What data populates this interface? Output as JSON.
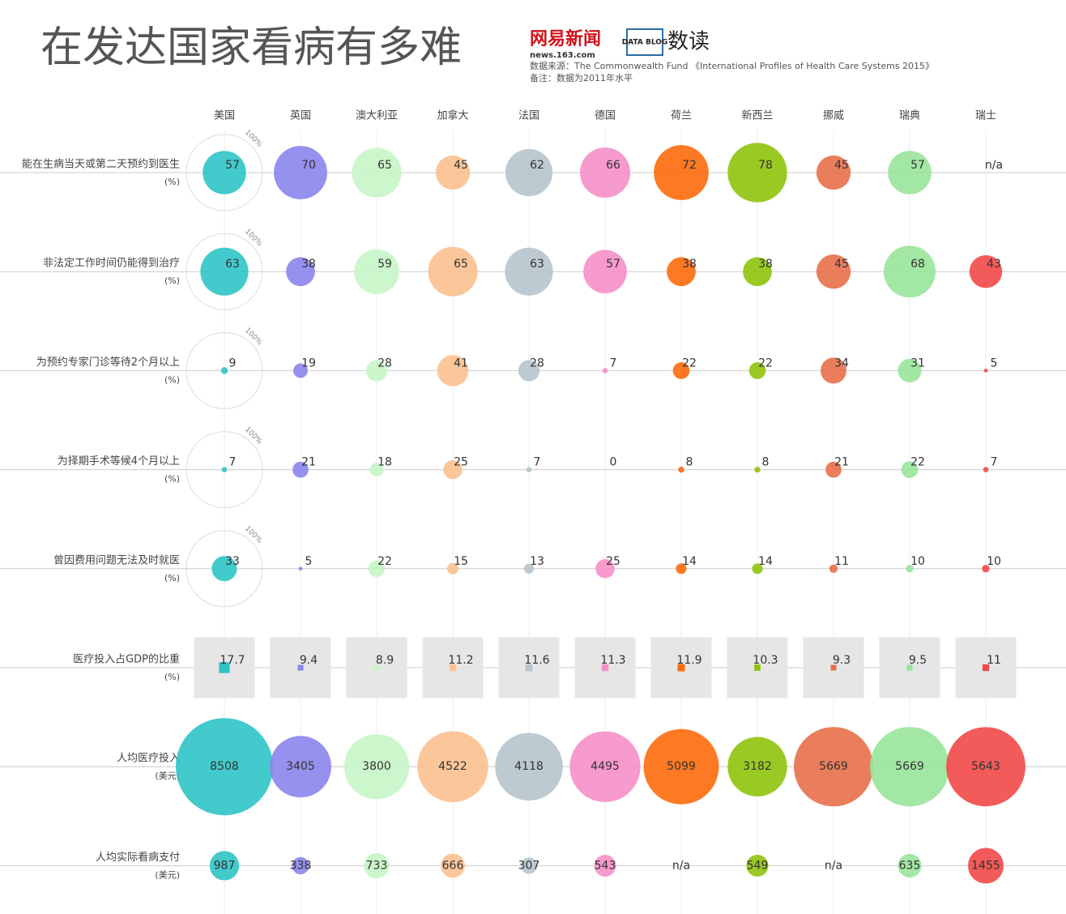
{
  "header": {
    "title": "在发达国家看病有多难",
    "logo_main": "网易新闻",
    "logo_sub": "news.163.com",
    "blog_mark": "DATA BLOG",
    "blog_name": "数读",
    "source": "数据来源：The Commonwealth Fund 《International Profiles of Health Care Systems 2015》",
    "note": "备注：数据为2011年水平"
  },
  "chart_data": {
    "type": "bubble_matrix",
    "categories": [
      "美国",
      "英国",
      "澳大利亚",
      "加拿大",
      "法国",
      "德国",
      "荷兰",
      "新西兰",
      "挪威",
      "瑞典",
      "瑞士"
    ],
    "colors": [
      "#2ec4c6",
      "#8b84ec",
      "#c6f5c6",
      "#fcc090",
      "#b6c4cc",
      "#f68fc8",
      "#fd6a0b",
      "#90c30c",
      "#e8704a",
      "#98e49a",
      "#f24848"
    ],
    "reference": {
      "value": 100,
      "label": "100%"
    },
    "series": [
      {
        "name": "能在生病当天或第二天预约到医生",
        "unit": "(%)",
        "values": [
          57,
          70,
          65,
          45,
          62,
          66,
          72,
          78,
          45,
          57,
          null
        ],
        "value_labels": [
          "57",
          "70",
          "65",
          "45",
          "62",
          "66",
          "72",
          "78",
          "45",
          "57",
          "n/a"
        ]
      },
      {
        "name": "非法定工作时间仍能得到治疗",
        "unit": "(%)",
        "values": [
          63,
          38,
          59,
          65,
          63,
          57,
          38,
          38,
          45,
          68,
          43
        ]
      },
      {
        "name": "为预约专家门诊等待2个月以上",
        "unit": "(%)",
        "values": [
          9,
          19,
          28,
          41,
          28,
          7,
          22,
          22,
          34,
          31,
          5
        ]
      },
      {
        "name": "为择期手术等候4个月以上",
        "unit": "(%)",
        "values": [
          7,
          21,
          18,
          25,
          7,
          0,
          8,
          8,
          21,
          22,
          7
        ]
      },
      {
        "name": "曾因费用问题无法及时就医",
        "unit": "(%)",
        "values": [
          33,
          5,
          22,
          15,
          13,
          25,
          14,
          14,
          11,
          10,
          10
        ]
      },
      {
        "name": "医疗投入占GDP的比重",
        "unit": "(%)",
        "mark": "square",
        "values": [
          17.7,
          9.4,
          8.9,
          11.2,
          11.6,
          11.3,
          11.9,
          10.3,
          9.3,
          9.5,
          11
        ]
      },
      {
        "name": "人均医疗投入",
        "unit": "(美元)",
        "values": [
          8508,
          3405,
          3800,
          4522,
          4118,
          4495,
          5099,
          3182,
          5669,
          5669,
          5643
        ]
      },
      {
        "name": "人均实际看病支付",
        "unit": "(美元)",
        "values": [
          987,
          338,
          733,
          666,
          307,
          543,
          null,
          549,
          null,
          635,
          1455
        ],
        "value_labels": [
          "987",
          "338",
          "733",
          "666",
          "307",
          "543",
          "n/a",
          "549",
          "n/a",
          "635",
          "1455"
        ]
      }
    ]
  }
}
